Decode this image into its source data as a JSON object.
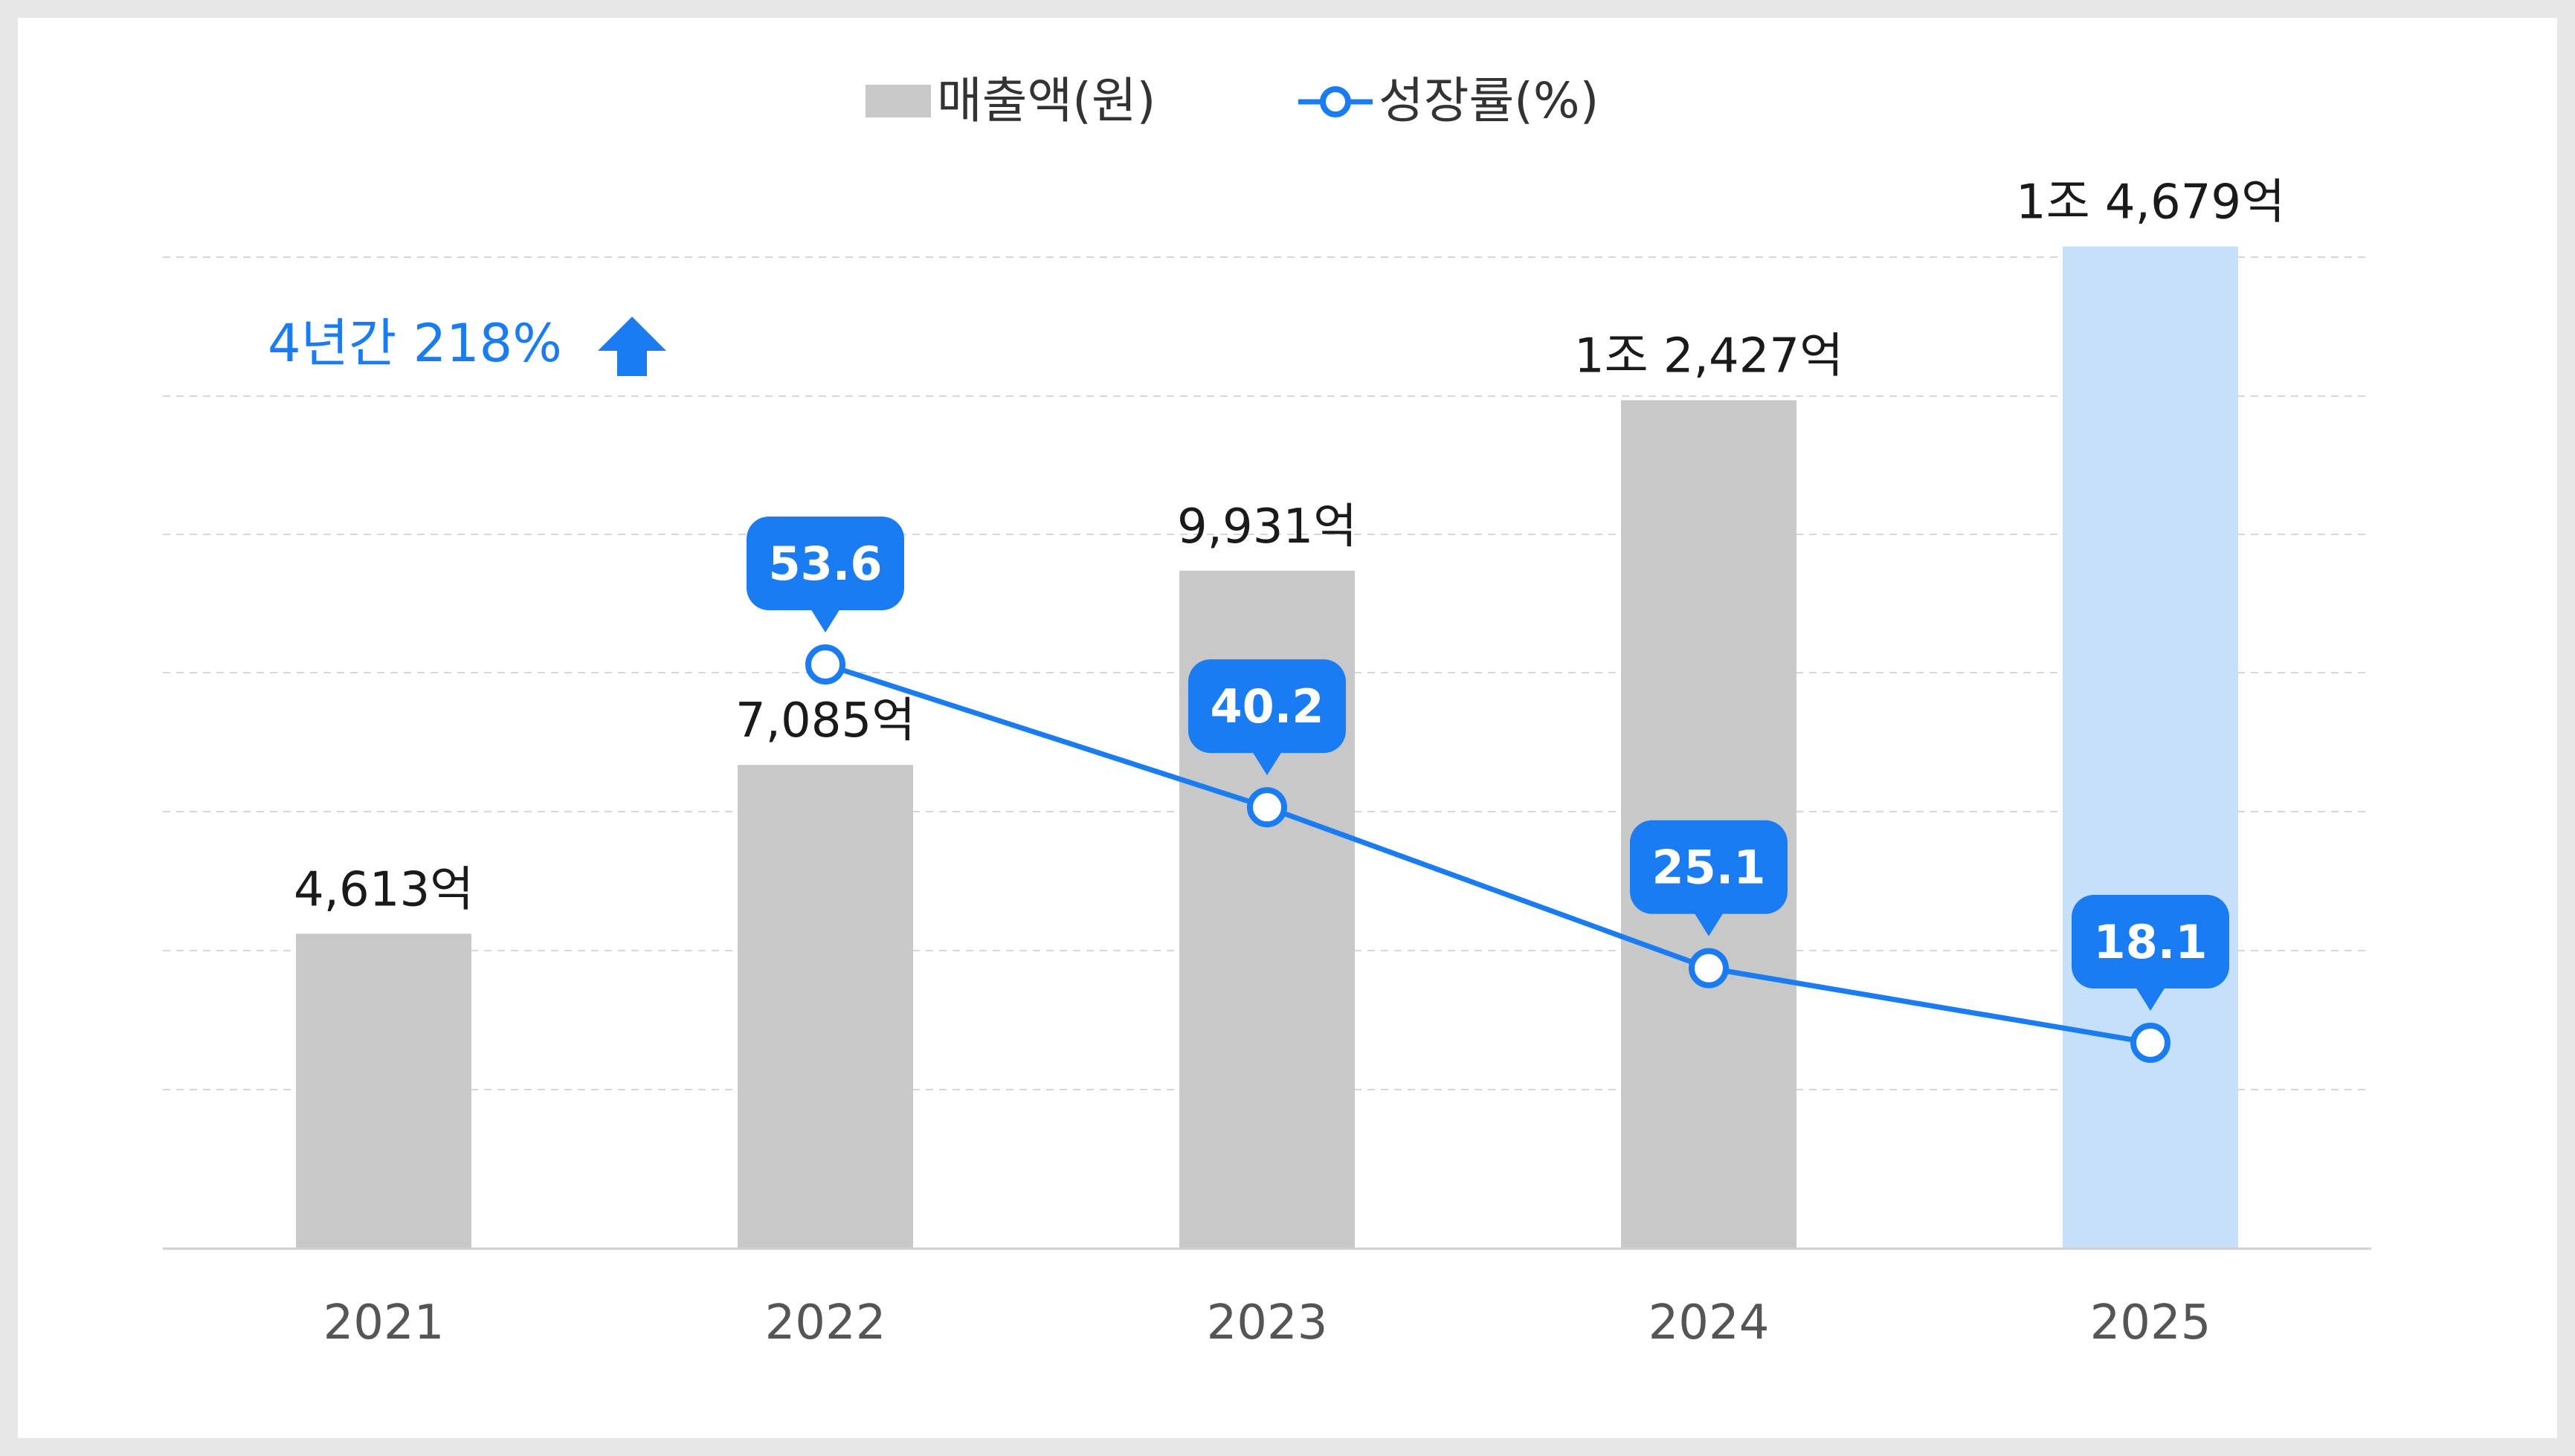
{
  "chart_data": {
    "type": "bar",
    "categories": [
      "2021",
      "2022",
      "2023",
      "2024",
      "2025"
    ],
    "series": [
      {
        "name": "매출액(원)",
        "type": "bar",
        "values": [
          4613,
          7085,
          9931,
          12427,
          14679
        ],
        "labels": [
          "4,613억",
          "7,085억",
          "9,931억",
          "1조 2,427억",
          "1조 4,679억"
        ]
      },
      {
        "name": "성장률(%)",
        "type": "line",
        "values": [
          null,
          53.6,
          40.2,
          25.1,
          18.1
        ],
        "labels": [
          "",
          "53.6",
          "40.2",
          "25.1",
          "18.1"
        ]
      }
    ],
    "highlight_category": "2025",
    "annotation": "4년간 218%",
    "legend": "top-center",
    "grid": true,
    "colors": {
      "bar": "#c8c8c8",
      "bar_highlight": "#c6e0fb",
      "line": "#1a7cf2",
      "bubble": "#1a7cf2",
      "axis_text": "#555555",
      "gridline": "#d6d6d6"
    }
  }
}
